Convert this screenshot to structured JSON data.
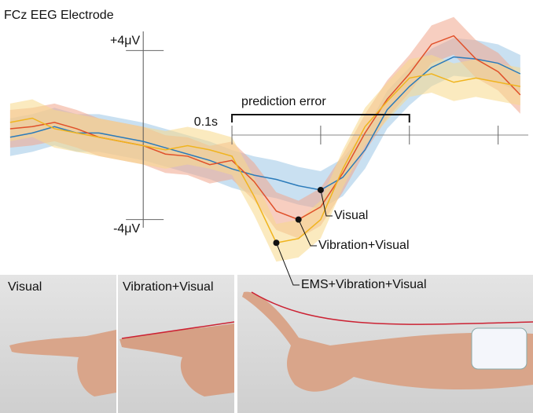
{
  "chart_data": {
    "type": "line",
    "title": "FCz EEG Electrode",
    "x": [
      -0.15,
      -0.125,
      -0.1,
      -0.075,
      -0.05,
      -0.025,
      0,
      0.025,
      0.05,
      0.075,
      0.1,
      0.125,
      0.15,
      0.175,
      0.2,
      0.225,
      0.25,
      0.275,
      0.3,
      0.325,
      0.35,
      0.375,
      0.4,
      0.425
    ],
    "xlim": [
      -0.157,
      0.434
    ],
    "xticks": [
      0.1,
      0.2,
      0.3,
      0.4
    ],
    "scale_label": "0.1s",
    "ylim": [
      -6.5,
      6
    ],
    "yticks": [
      {
        "value": 4,
        "label": "+4μV"
      },
      {
        "value": -4,
        "label": "-4μV"
      }
    ],
    "prediction_error": {
      "label": "prediction error",
      "range": [
        0.1,
        0.3
      ]
    },
    "series": [
      {
        "name": "Visual",
        "color": "#2b7bba",
        "band_color": "#9cc6e6",
        "values": [
          -0.1,
          0.1,
          0.4,
          0.1,
          0.1,
          -0.1,
          -0.3,
          -0.6,
          -0.9,
          -1.2,
          -1.6,
          -1.9,
          -2.1,
          -2.4,
          -2.6,
          -2.0,
          -0.7,
          1.2,
          2.3,
          3.2,
          3.7,
          3.6,
          3.4,
          2.9
        ]
      },
      {
        "name": "Vibration+Visual",
        "color": "#e0502a",
        "band_color": "#f0a58c",
        "values": [
          0.3,
          0.4,
          0.6,
          0.3,
          -0.1,
          -0.3,
          -0.5,
          -0.9,
          -1.0,
          -1.4,
          -1.2,
          -2.2,
          -3.6,
          -4.0,
          -3.4,
          -1.8,
          0.1,
          1.7,
          2.9,
          4.3,
          4.7,
          3.6,
          3.0,
          1.9
        ]
      },
      {
        "name": "EMS+Vibration+Visual",
        "color": "#f0b41e",
        "band_color": "#f7d98a",
        "values": [
          0.6,
          0.8,
          0.3,
          0.1,
          -0.1,
          -0.3,
          -0.5,
          -0.7,
          -0.5,
          -0.7,
          -1.0,
          -2.9,
          -5.1,
          -4.9,
          -4.0,
          -1.6,
          0.4,
          1.6,
          2.7,
          2.9,
          2.5,
          2.7,
          2.5,
          2.3
        ]
      }
    ]
  },
  "photos": {
    "labels": [
      "Visual",
      "Vibration+Visual"
    ]
  }
}
